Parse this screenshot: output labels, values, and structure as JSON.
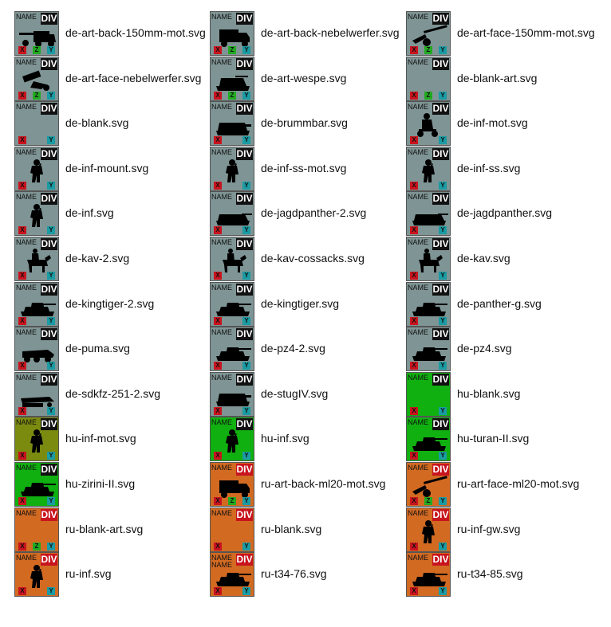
{
  "colors": {
    "de": "#7f9494",
    "hu-olive": "#7a8b10",
    "hu-green": "#10b010",
    "ru": "#d26a22",
    "div-de": "#111111",
    "div-ru": "#c8141e"
  },
  "tile_labels": {
    "name": "NAME",
    "div": "DIV",
    "x": "X",
    "z": "Z",
    "y": "Y"
  },
  "files": [
    {
      "name": "de-art-back-150mm-mot.svg",
      "bg": "de",
      "icon": "truck-gun-icon",
      "z": true
    },
    {
      "name": "de-art-back-nebelwerfer.svg",
      "bg": "de",
      "icon": "truck-icon",
      "z": true
    },
    {
      "name": "de-art-face-150mm-mot.svg",
      "bg": "de",
      "icon": "howitzer-icon",
      "z": true
    },
    {
      "name": "de-art-face-nebelwerfer.svg",
      "bg": "de",
      "icon": "rocket-launcher-icon",
      "z": true
    },
    {
      "name": "de-art-wespe.svg",
      "bg": "de",
      "icon": "spg-icon",
      "z": true
    },
    {
      "name": "de-blank-art.svg",
      "bg": "de",
      "icon": "",
      "z": true
    },
    {
      "name": "de-blank.svg",
      "bg": "de",
      "icon": "",
      "z": false
    },
    {
      "name": "de-brummbar.svg",
      "bg": "de",
      "icon": "assault-gun-icon",
      "z": false
    },
    {
      "name": "de-inf-mot.svg",
      "bg": "de",
      "icon": "motorcycle-soldier-icon",
      "z": false
    },
    {
      "name": "de-inf-mount.svg",
      "bg": "de",
      "icon": "soldier-icon",
      "z": false
    },
    {
      "name": "de-inf-ss-mot.svg",
      "bg": "de",
      "icon": "soldier-icon",
      "z": false
    },
    {
      "name": "de-inf-ss.svg",
      "bg": "de",
      "icon": "soldier-icon",
      "z": false
    },
    {
      "name": "de-inf.svg",
      "bg": "de",
      "icon": "soldier-icon",
      "z": false
    },
    {
      "name": "de-jagdpanther-2.svg",
      "bg": "de",
      "icon": "tank-destroyer-icon",
      "z": false
    },
    {
      "name": "de-jagdpanther.svg",
      "bg": "de",
      "icon": "tank-destroyer-icon",
      "z": false
    },
    {
      "name": "de-kav-2.svg",
      "bg": "de",
      "icon": "horse-rider-icon",
      "z": false
    },
    {
      "name": "de-kav-cossacks.svg",
      "bg": "de",
      "icon": "horse-rider-icon",
      "z": false
    },
    {
      "name": "de-kav.svg",
      "bg": "de",
      "icon": "horse-rider-icon",
      "z": false
    },
    {
      "name": "de-kingtiger-2.svg",
      "bg": "de",
      "icon": "tank-icon",
      "z": false
    },
    {
      "name": "de-kingtiger.svg",
      "bg": "de",
      "icon": "tank-icon",
      "z": false
    },
    {
      "name": "de-panther-g.svg",
      "bg": "de",
      "icon": "tank-icon",
      "z": false
    },
    {
      "name": "de-puma.svg",
      "bg": "de",
      "icon": "armored-car-icon",
      "z": false
    },
    {
      "name": "de-pz4-2.svg",
      "bg": "de",
      "icon": "tank-icon",
      "z": false
    },
    {
      "name": "de-pz4.svg",
      "bg": "de",
      "icon": "tank-icon",
      "z": false
    },
    {
      "name": "de-sdkfz-251-2.svg",
      "bg": "de",
      "icon": "halftrack-icon",
      "z": false
    },
    {
      "name": "de-stugIV.svg",
      "bg": "de",
      "icon": "assault-gun-icon",
      "z": false
    },
    {
      "name": "hu-blank.svg",
      "bg": "hu-green",
      "icon": "",
      "z": false
    },
    {
      "name": "hu-inf-mot.svg",
      "bg": "hu-olive",
      "icon": "soldier-icon",
      "z": false
    },
    {
      "name": "hu-inf.svg",
      "bg": "hu-green",
      "icon": "soldier-icon",
      "z": false
    },
    {
      "name": "hu-turan-II.svg",
      "bg": "hu-green",
      "icon": "tank-icon",
      "z": false
    },
    {
      "name": "hu-zirini-II.svg",
      "bg": "hu-green",
      "icon": "tank-icon",
      "z": false
    },
    {
      "name": "ru-art-back-ml20-mot.svg",
      "bg": "ru",
      "icon": "truck-icon",
      "z": true
    },
    {
      "name": "ru-art-face-ml20-mot.svg",
      "bg": "ru",
      "icon": "howitzer-icon",
      "z": true
    },
    {
      "name": "ru-blank-art.svg",
      "bg": "ru",
      "icon": "",
      "z": true
    },
    {
      "name": "ru-blank.svg",
      "bg": "ru",
      "icon": "",
      "z": false
    },
    {
      "name": "ru-inf-gw.svg",
      "bg": "ru",
      "icon": "soldier-icon",
      "z": false
    },
    {
      "name": "ru-inf.svg",
      "bg": "ru",
      "icon": "soldier-icon",
      "z": false
    },
    {
      "name": "ru-t34-76.svg",
      "bg": "ru",
      "icon": "tank-icon",
      "z": false,
      "double_name": true
    },
    {
      "name": "ru-t34-85.svg",
      "bg": "ru",
      "icon": "tank-icon",
      "z": false
    }
  ]
}
